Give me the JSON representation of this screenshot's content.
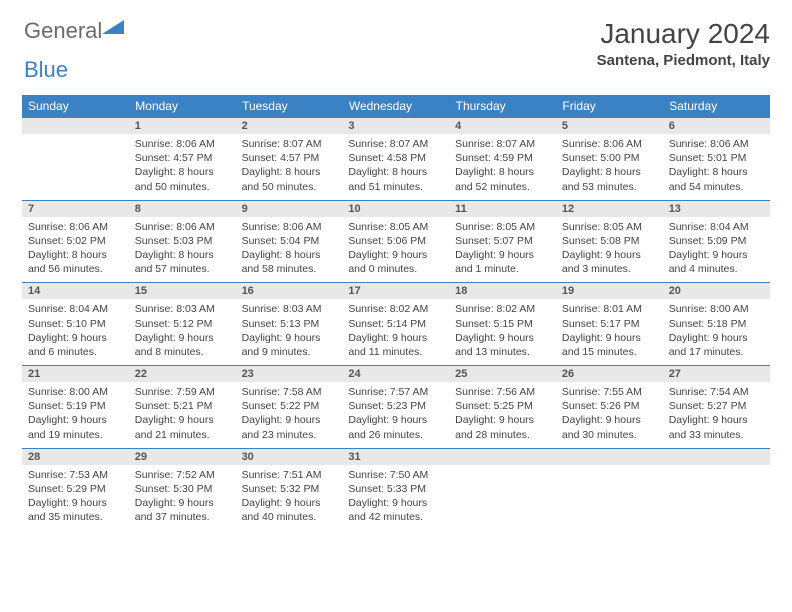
{
  "logo": {
    "word1": "General",
    "word2": "Blue"
  },
  "title": "January 2024",
  "location": "Santena, Piedmont, Italy",
  "weekdays": [
    "Sunday",
    "Monday",
    "Tuesday",
    "Wednesday",
    "Thursday",
    "Friday",
    "Saturday"
  ],
  "colors": {
    "header_bg": "#3b82c4",
    "header_fg": "#ffffff",
    "daynum_bg": "#e8e8e8",
    "rule": "#3b82c4",
    "text": "#444444"
  },
  "weeks": [
    [
      null,
      {
        "n": "1",
        "sr": "Sunrise: 8:06 AM",
        "ss": "Sunset: 4:57 PM",
        "d1": "Daylight: 8 hours",
        "d2": "and 50 minutes."
      },
      {
        "n": "2",
        "sr": "Sunrise: 8:07 AM",
        "ss": "Sunset: 4:57 PM",
        "d1": "Daylight: 8 hours",
        "d2": "and 50 minutes."
      },
      {
        "n": "3",
        "sr": "Sunrise: 8:07 AM",
        "ss": "Sunset: 4:58 PM",
        "d1": "Daylight: 8 hours",
        "d2": "and 51 minutes."
      },
      {
        "n": "4",
        "sr": "Sunrise: 8:07 AM",
        "ss": "Sunset: 4:59 PM",
        "d1": "Daylight: 8 hours",
        "d2": "and 52 minutes."
      },
      {
        "n": "5",
        "sr": "Sunrise: 8:06 AM",
        "ss": "Sunset: 5:00 PM",
        "d1": "Daylight: 8 hours",
        "d2": "and 53 minutes."
      },
      {
        "n": "6",
        "sr": "Sunrise: 8:06 AM",
        "ss": "Sunset: 5:01 PM",
        "d1": "Daylight: 8 hours",
        "d2": "and 54 minutes."
      }
    ],
    [
      {
        "n": "7",
        "sr": "Sunrise: 8:06 AM",
        "ss": "Sunset: 5:02 PM",
        "d1": "Daylight: 8 hours",
        "d2": "and 56 minutes."
      },
      {
        "n": "8",
        "sr": "Sunrise: 8:06 AM",
        "ss": "Sunset: 5:03 PM",
        "d1": "Daylight: 8 hours",
        "d2": "and 57 minutes."
      },
      {
        "n": "9",
        "sr": "Sunrise: 8:06 AM",
        "ss": "Sunset: 5:04 PM",
        "d1": "Daylight: 8 hours",
        "d2": "and 58 minutes."
      },
      {
        "n": "10",
        "sr": "Sunrise: 8:05 AM",
        "ss": "Sunset: 5:06 PM",
        "d1": "Daylight: 9 hours",
        "d2": "and 0 minutes."
      },
      {
        "n": "11",
        "sr": "Sunrise: 8:05 AM",
        "ss": "Sunset: 5:07 PM",
        "d1": "Daylight: 9 hours",
        "d2": "and 1 minute."
      },
      {
        "n": "12",
        "sr": "Sunrise: 8:05 AM",
        "ss": "Sunset: 5:08 PM",
        "d1": "Daylight: 9 hours",
        "d2": "and 3 minutes."
      },
      {
        "n": "13",
        "sr": "Sunrise: 8:04 AM",
        "ss": "Sunset: 5:09 PM",
        "d1": "Daylight: 9 hours",
        "d2": "and 4 minutes."
      }
    ],
    [
      {
        "n": "14",
        "sr": "Sunrise: 8:04 AM",
        "ss": "Sunset: 5:10 PM",
        "d1": "Daylight: 9 hours",
        "d2": "and 6 minutes."
      },
      {
        "n": "15",
        "sr": "Sunrise: 8:03 AM",
        "ss": "Sunset: 5:12 PM",
        "d1": "Daylight: 9 hours",
        "d2": "and 8 minutes."
      },
      {
        "n": "16",
        "sr": "Sunrise: 8:03 AM",
        "ss": "Sunset: 5:13 PM",
        "d1": "Daylight: 9 hours",
        "d2": "and 9 minutes."
      },
      {
        "n": "17",
        "sr": "Sunrise: 8:02 AM",
        "ss": "Sunset: 5:14 PM",
        "d1": "Daylight: 9 hours",
        "d2": "and 11 minutes."
      },
      {
        "n": "18",
        "sr": "Sunrise: 8:02 AM",
        "ss": "Sunset: 5:15 PM",
        "d1": "Daylight: 9 hours",
        "d2": "and 13 minutes."
      },
      {
        "n": "19",
        "sr": "Sunrise: 8:01 AM",
        "ss": "Sunset: 5:17 PM",
        "d1": "Daylight: 9 hours",
        "d2": "and 15 minutes."
      },
      {
        "n": "20",
        "sr": "Sunrise: 8:00 AM",
        "ss": "Sunset: 5:18 PM",
        "d1": "Daylight: 9 hours",
        "d2": "and 17 minutes."
      }
    ],
    [
      {
        "n": "21",
        "sr": "Sunrise: 8:00 AM",
        "ss": "Sunset: 5:19 PM",
        "d1": "Daylight: 9 hours",
        "d2": "and 19 minutes."
      },
      {
        "n": "22",
        "sr": "Sunrise: 7:59 AM",
        "ss": "Sunset: 5:21 PM",
        "d1": "Daylight: 9 hours",
        "d2": "and 21 minutes."
      },
      {
        "n": "23",
        "sr": "Sunrise: 7:58 AM",
        "ss": "Sunset: 5:22 PM",
        "d1": "Daylight: 9 hours",
        "d2": "and 23 minutes."
      },
      {
        "n": "24",
        "sr": "Sunrise: 7:57 AM",
        "ss": "Sunset: 5:23 PM",
        "d1": "Daylight: 9 hours",
        "d2": "and 26 minutes."
      },
      {
        "n": "25",
        "sr": "Sunrise: 7:56 AM",
        "ss": "Sunset: 5:25 PM",
        "d1": "Daylight: 9 hours",
        "d2": "and 28 minutes."
      },
      {
        "n": "26",
        "sr": "Sunrise: 7:55 AM",
        "ss": "Sunset: 5:26 PM",
        "d1": "Daylight: 9 hours",
        "d2": "and 30 minutes."
      },
      {
        "n": "27",
        "sr": "Sunrise: 7:54 AM",
        "ss": "Sunset: 5:27 PM",
        "d1": "Daylight: 9 hours",
        "d2": "and 33 minutes."
      }
    ],
    [
      {
        "n": "28",
        "sr": "Sunrise: 7:53 AM",
        "ss": "Sunset: 5:29 PM",
        "d1": "Daylight: 9 hours",
        "d2": "and 35 minutes."
      },
      {
        "n": "29",
        "sr": "Sunrise: 7:52 AM",
        "ss": "Sunset: 5:30 PM",
        "d1": "Daylight: 9 hours",
        "d2": "and 37 minutes."
      },
      {
        "n": "30",
        "sr": "Sunrise: 7:51 AM",
        "ss": "Sunset: 5:32 PM",
        "d1": "Daylight: 9 hours",
        "d2": "and 40 minutes."
      },
      {
        "n": "31",
        "sr": "Sunrise: 7:50 AM",
        "ss": "Sunset: 5:33 PM",
        "d1": "Daylight: 9 hours",
        "d2": "and 42 minutes."
      },
      null,
      null,
      null
    ]
  ]
}
